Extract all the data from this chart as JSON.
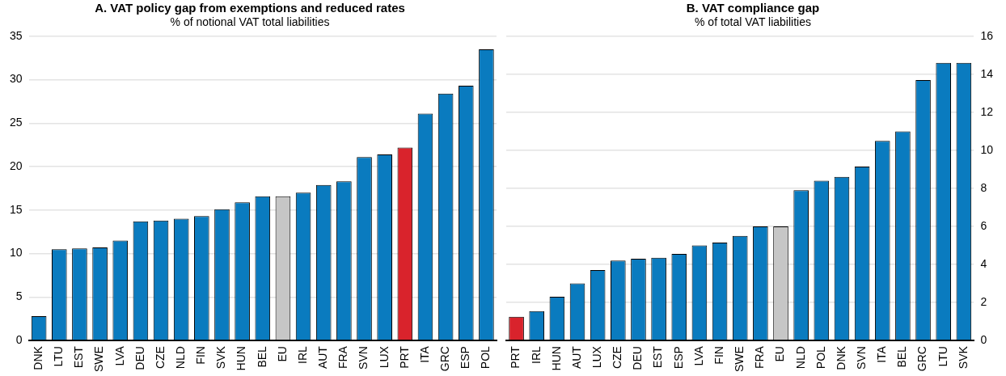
{
  "chart_data": [
    {
      "type": "bar",
      "title": "A. VAT policy gap from exemptions and reduced rates",
      "subtitle": "% of notional VAT total liabilities",
      "categories": [
        "DNK",
        "LTU",
        "EST",
        "SWE",
        "LVA",
        "DEU",
        "CZE",
        "NLD",
        "FIN",
        "SVK",
        "HUN",
        "BEL",
        "EU",
        "IRL",
        "AUT",
        "FRA",
        "SVN",
        "LUX",
        "PRT",
        "ITA",
        "GRC",
        "ESP",
        "POL"
      ],
      "values": [
        2.8,
        10.5,
        10.6,
        10.7,
        11.5,
        13.7,
        13.8,
        14.0,
        14.3,
        15.1,
        15.9,
        16.6,
        16.6,
        17.0,
        17.9,
        18.3,
        21.1,
        21.4,
        22.2,
        26.1,
        28.4,
        29.3,
        33.5
      ],
      "colors": [
        "#0a7bbf",
        "#0a7bbf",
        "#0a7bbf",
        "#0a7bbf",
        "#0a7bbf",
        "#0a7bbf",
        "#0a7bbf",
        "#0a7bbf",
        "#0a7bbf",
        "#0a7bbf",
        "#0a7bbf",
        "#0a7bbf",
        "#c6c6c6",
        "#0a7bbf",
        "#0a7bbf",
        "#0a7bbf",
        "#0a7bbf",
        "#0a7bbf",
        "#d9232c",
        "#0a7bbf",
        "#0a7bbf",
        "#0a7bbf",
        "#0a7bbf"
      ],
      "ylim": [
        0,
        35
      ],
      "yticks": [
        0,
        5,
        10,
        15,
        20,
        25,
        30,
        35
      ],
      "grid": "y",
      "legend": false
    },
    {
      "type": "bar",
      "title": "B. VAT compliance gap",
      "subtitle": "% of total VAT liabilities",
      "categories": [
        "PRT",
        "IRL",
        "HUN",
        "AUT",
        "LUX",
        "CZE",
        "DEU",
        "EST",
        "ESP",
        "LVA",
        "FIN",
        "SWE",
        "FRA",
        "EU",
        "NLD",
        "POL",
        "DNK",
        "SVN",
        "ITA",
        "BEL",
        "GRC",
        "LTU",
        "SVK"
      ],
      "series": [
        {
          "axis": "y2",
          "values": [
            1.25,
            1.55,
            2.3,
            3.0,
            3.7,
            4.2,
            4.3,
            4.35,
            4.55,
            5.0,
            5.15,
            5.5,
            6.0,
            6.0,
            7.9,
            8.4,
            8.6,
            9.15,
            10.5,
            11.0,
            13.7,
            14.6,
            14.6
          ],
          "colors": [
            "#d9232c",
            "#0a7bbf",
            "#0a7bbf",
            "#0a7bbf",
            "#0a7bbf",
            "#0a7bbf",
            "#0a7bbf",
            "#0a7bbf",
            "#0a7bbf",
            "#0a7bbf",
            "#0a7bbf",
            "#0a7bbf",
            "#0a7bbf",
            "#c6c6c6",
            "#0a7bbf",
            "#0a7bbf",
            "#0a7bbf",
            "#0a7bbf",
            "#0a7bbf",
            "#0a7bbf",
            "#0a7bbf",
            "#0a7bbf",
            "#0a7bbf"
          ]
        }
      ],
      "y2lim": [
        0,
        16
      ],
      "y2ticks": [
        0,
        2,
        4,
        6,
        8,
        10,
        12,
        14,
        16
      ],
      "grid": "y",
      "legend": false
    }
  ]
}
